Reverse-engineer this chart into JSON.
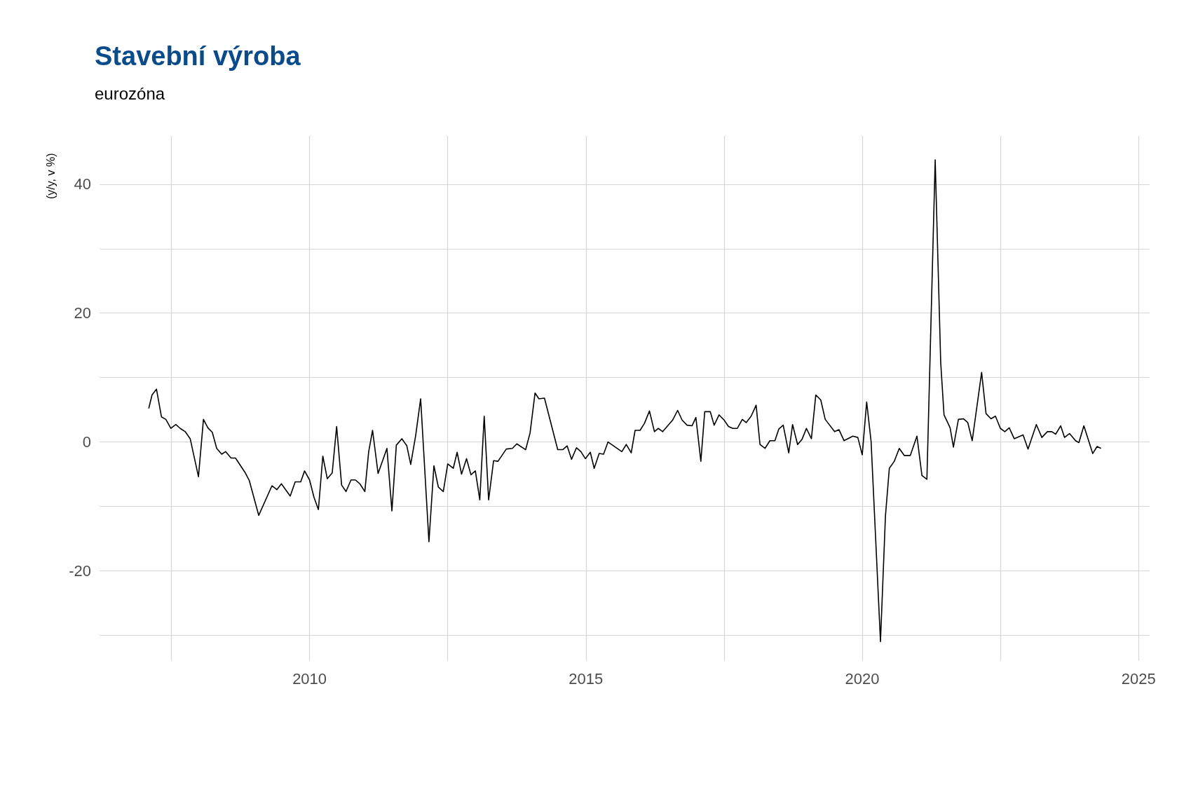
{
  "chart_data": {
    "type": "line",
    "title": "Stavební výroba",
    "subtitle": "eurozóna",
    "ylabel": "(y/y, v %)",
    "xlim": [
      2006.2,
      2025.2
    ],
    "xticks": [
      {
        "value": 2007.5,
        "label": null
      },
      2010,
      {
        "value": 2012.5,
        "label": null
      },
      2015,
      {
        "value": 2017.5,
        "label": null
      },
      2020,
      {
        "value": 2022.5,
        "label": null
      },
      2025
    ],
    "ylim": [
      -34,
      47.5
    ],
    "yticks": [
      {
        "value": -30,
        "label": null
      },
      -20,
      {
        "value": -10,
        "label": null
      },
      0,
      {
        "value": 10,
        "label": null
      },
      20,
      {
        "value": 30,
        "label": null
      },
      40
    ],
    "grid": true,
    "series": [
      {
        "color": "#000000",
        "x": [
          2007.09,
          2007.15,
          2007.23,
          2007.32,
          2007.4,
          2007.49,
          2007.58,
          2007.66,
          2007.75,
          2007.84,
          2007.99,
          2008.08,
          2008.16,
          2008.24,
          2008.32,
          2008.41,
          2008.48,
          2008.58,
          2008.66,
          2008.83,
          2008.91,
          2009.08,
          2009.32,
          2009.41,
          2009.49,
          2009.65,
          2009.74,
          2009.84,
          2009.91,
          2010.0,
          2010.08,
          2010.16,
          2010.24,
          2010.32,
          2010.41,
          2010.49,
          2010.58,
          2010.66,
          2010.75,
          2010.83,
          2010.91,
          2011.0,
          2011.07,
          2011.14,
          2011.24,
          2011.4,
          2011.49,
          2011.57,
          2011.67,
          2011.76,
          2011.83,
          2011.92,
          2012.01,
          2012.16,
          2012.25,
          2012.33,
          2012.42,
          2012.5,
          2012.6,
          2012.67,
          2012.75,
          2012.84,
          2012.92,
          2013.0,
          2013.08,
          2013.16,
          2013.24,
          2013.33,
          2013.41,
          2013.56,
          2013.67,
          2013.75,
          2013.91,
          2013.99,
          2014.08,
          2014.15,
          2014.25,
          2014.49,
          2014.58,
          2014.66,
          2014.74,
          2014.83,
          2014.91,
          2014.99,
          2015.08,
          2015.15,
          2015.24,
          2015.32,
          2015.4,
          2015.65,
          2015.73,
          2015.82,
          2015.89,
          2015.98,
          2016.06,
          2016.15,
          2016.24,
          2016.31,
          2016.39,
          2016.57,
          2016.66,
          2016.74,
          2016.83,
          2016.92,
          2016.99,
          2017.08,
          2017.15,
          2017.25,
          2017.32,
          2017.41,
          2017.5,
          2017.58,
          2017.66,
          2017.74,
          2017.83,
          2017.9,
          2017.99,
          2018.08,
          2018.15,
          2018.24,
          2018.33,
          2018.42,
          2018.49,
          2018.57,
          2018.67,
          2018.74,
          2018.83,
          2018.91,
          2018.99,
          2019.08,
          2019.16,
          2019.25,
          2019.33,
          2019.5,
          2019.58,
          2019.67,
          2019.83,
          2019.92,
          2020.0,
          2020.08,
          2020.16,
          2020.33,
          2020.42,
          2020.49,
          2020.58,
          2020.67,
          2020.76,
          2020.87,
          2020.99,
          2021.08,
          2021.17,
          2021.32,
          2021.42,
          2021.48,
          2021.59,
          2021.65,
          2021.74,
          2021.83,
          2021.91,
          2021.99,
          2022.16,
          2022.24,
          2022.33,
          2022.41,
          2022.5,
          2022.58,
          2022.66,
          2022.75,
          2022.91,
          2023.0,
          2023.15,
          2023.25,
          2023.35,
          2023.43,
          2023.5,
          2023.59,
          2023.66,
          2023.75,
          2023.86,
          2023.92,
          2024.01,
          2024.17,
          2024.25,
          2024.32
        ],
        "values": [
          5.2,
          7.3,
          8.2,
          3.9,
          3.5,
          2.1,
          2.7,
          2.1,
          1.6,
          0.5,
          -5.4,
          3.5,
          2.2,
          1.5,
          -1.0,
          -1.9,
          -1.5,
          -2.5,
          -2.5,
          -4.7,
          -6.0,
          -11.4,
          -6.8,
          -7.4,
          -6.5,
          -8.4,
          -6.2,
          -6.2,
          -4.5,
          -5.9,
          -8.6,
          -10.5,
          -2.2,
          -5.7,
          -4.8,
          2.4,
          -6.7,
          -7.7,
          -5.9,
          -5.9,
          -6.5,
          -7.7,
          -1.5,
          1.8,
          -4.9,
          -1.0,
          -10.7,
          -0.5,
          0.5,
          -0.6,
          -3.5,
          1.0,
          6.7,
          -15.5,
          -3.7,
          -7.0,
          -7.7,
          -3.4,
          -4.1,
          -1.6,
          -5.0,
          -2.6,
          -5.1,
          -4.5,
          -9.0,
          4.0,
          -9.0,
          -2.9,
          -3.0,
          -1.1,
          -1.0,
          -0.3,
          -1.2,
          1.4,
          7.6,
          6.7,
          6.8,
          -1.2,
          -1.2,
          -0.6,
          -2.7,
          -0.9,
          -1.5,
          -2.6,
          -1.6,
          -4.1,
          -1.8,
          -1.9,
          0.0,
          -1.5,
          -0.4,
          -1.7,
          1.8,
          1.8,
          2.9,
          4.8,
          1.6,
          2.1,
          1.6,
          3.4,
          4.9,
          3.4,
          2.6,
          2.5,
          3.8,
          -3.0,
          4.7,
          4.7,
          2.6,
          4.2,
          3.4,
          2.4,
          2.1,
          2.1,
          3.5,
          3.0,
          4.0,
          5.7,
          -0.4,
          -1.0,
          0.2,
          0.2,
          2.0,
          2.6,
          -1.7,
          2.7,
          -0.4,
          0.4,
          2.1,
          0.5,
          7.3,
          6.5,
          3.5,
          1.6,
          1.9,
          0.2,
          0.9,
          0.7,
          -2.0,
          6.2,
          0.1,
          -31,
          -11.5,
          -4.1,
          -3.0,
          -1.0,
          -2.1,
          -2.1,
          0.9,
          -5.2,
          -5.8,
          43.8,
          12.3,
          4.2,
          2.2,
          -0.8,
          3.5,
          3.6,
          3.0,
          0.2,
          10.8,
          4.4,
          3.6,
          4.0,
          2.1,
          1.6,
          2.2,
          0.5,
          1.1,
          -1.1,
          2.7,
          0.7,
          1.6,
          1.6,
          1.2,
          2.5,
          0.7,
          1.3,
          0.2,
          -0.1,
          2.5,
          -1.8,
          -0.7,
          -1.0
        ]
      }
    ]
  }
}
